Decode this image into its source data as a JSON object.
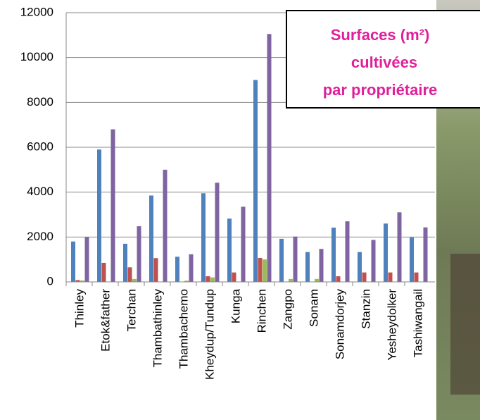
{
  "chart_data": {
    "type": "bar",
    "title_lines": [
      "Surfaces (m²)",
      "cultivées",
      "par propriétaire"
    ],
    "categories": [
      "Thinley",
      "Etok&father",
      "Terchan",
      "Thambathinley",
      "Thambachemo",
      "Kheydup/Tundup",
      "Kunga",
      "Rinchen",
      "Zangpo",
      "Sonam",
      "Sonamdorjey",
      "Stanzin",
      "Yesheydolker",
      "Tashiwangail"
    ],
    "series": [
      {
        "color": "#4f81bd",
        "values": [
          1800,
          5900,
          1700,
          3850,
          1120,
          3950,
          2820,
          9000,
          1920,
          1330,
          2420,
          1330,
          2600,
          1980
        ]
      },
      {
        "color": "#c0504d",
        "values": [
          80,
          850,
          650,
          1060,
          0,
          250,
          420,
          1070,
          0,
          0,
          250,
          420,
          420,
          420
        ]
      },
      {
        "color": "#9bbb59",
        "values": [
          60,
          0,
          130,
          0,
          50,
          200,
          0,
          1000,
          130,
          130,
          0,
          0,
          0,
          0
        ]
      },
      {
        "color": "#8064a2",
        "values": [
          2000,
          6800,
          2480,
          5000,
          1230,
          4420,
          3350,
          11050,
          2020,
          1470,
          2700,
          1870,
          3100,
          2430
        ]
      }
    ],
    "ylim": [
      0,
      12000
    ],
    "yticks": [
      0,
      2000,
      4000,
      6000,
      8000,
      10000,
      12000
    ],
    "grid": true
  }
}
